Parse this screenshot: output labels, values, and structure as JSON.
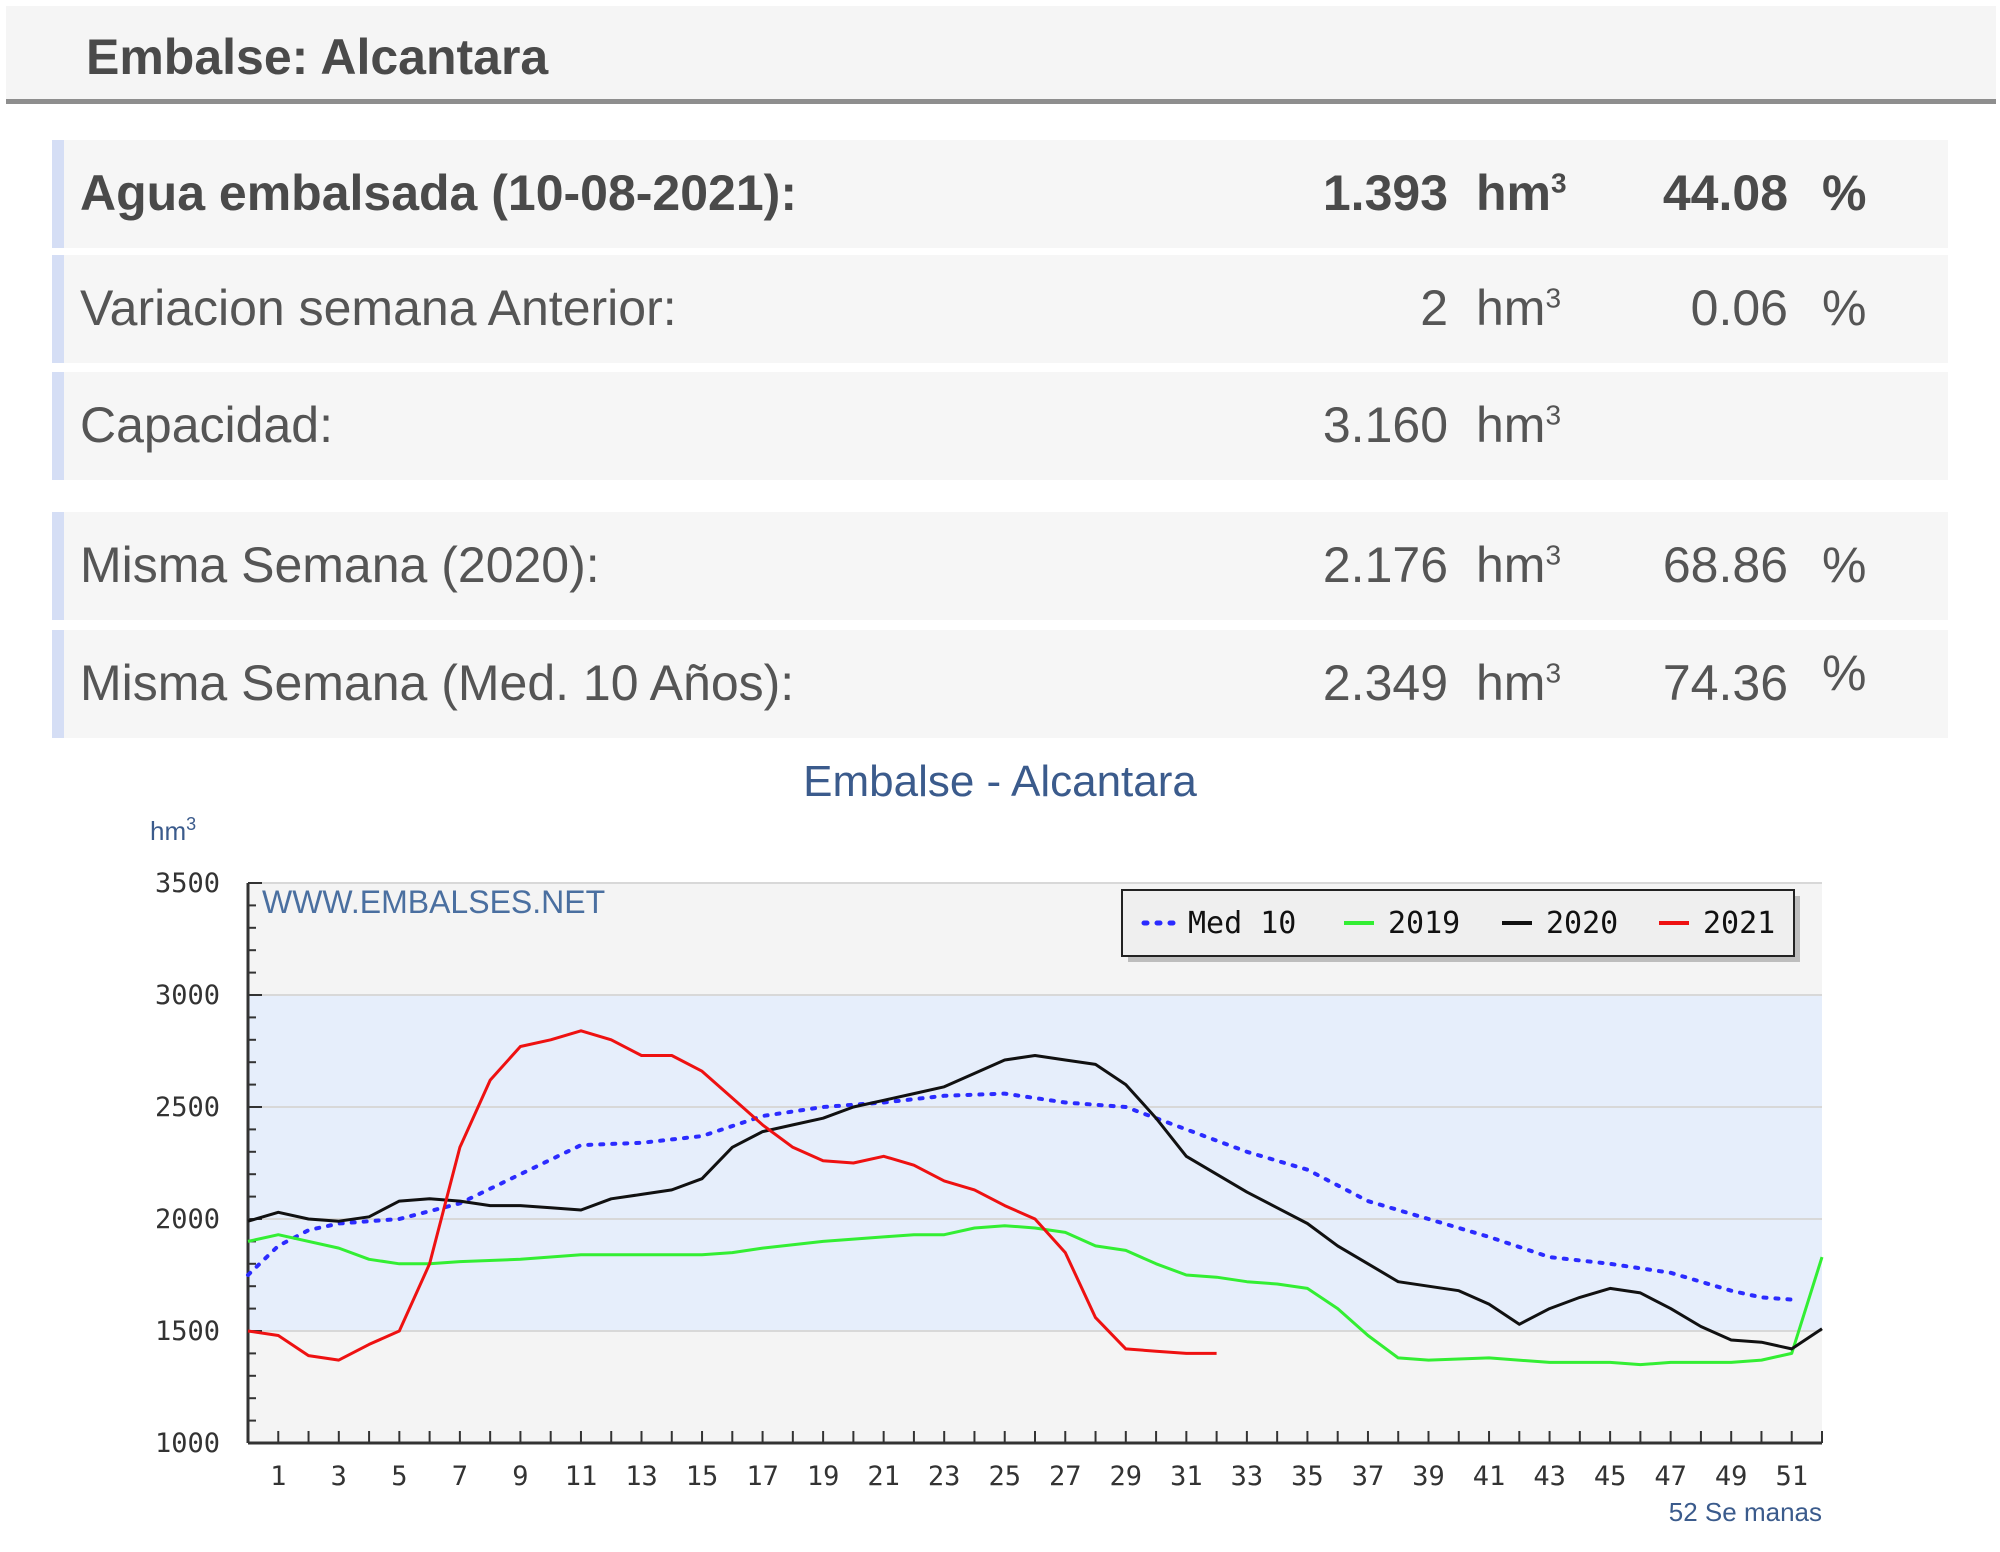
{
  "header": {
    "title": "Embalse: Alcantara"
  },
  "rows": [
    {
      "label": "Agua embalsada (10-08-2021):",
      "value": "1.393",
      "unit": "hm",
      "unit_sup": "3",
      "pct": "44.08",
      "pct_sign": "%"
    },
    {
      "label": "Variacion semana Anterior:",
      "value": "2",
      "unit": "hm",
      "unit_sup": "3",
      "pct": "0.06",
      "pct_sign": "%"
    },
    {
      "label": "Capacidad:",
      "value": "3.160",
      "unit": "hm",
      "unit_sup": "3",
      "pct": "",
      "pct_sign": ""
    },
    {
      "label": "Misma Semana (2020):",
      "value": "2.176",
      "unit": "hm",
      "unit_sup": "3",
      "pct": "68.86",
      "pct_sign": "%"
    },
    {
      "label": "Misma Semana (Med. 10 Años):",
      "value": "2.349",
      "unit": "hm",
      "unit_sup": "3",
      "pct": "74.36",
      "pct_sign": "%"
    }
  ],
  "chart_data": {
    "type": "line",
    "title": "Embalse - Alcantara",
    "ylabel": "hm",
    "ylabel_sup": "3",
    "xlabel": "52 Se manas",
    "watermark": "WWW.EMBALSES.NET",
    "ylim": [
      1000,
      3500
    ],
    "xlim": [
      0,
      52
    ],
    "yticks": [
      1000,
      1500,
      2000,
      2500,
      3000,
      3500
    ],
    "xticks": [
      1,
      3,
      5,
      7,
      9,
      11,
      13,
      15,
      17,
      19,
      21,
      23,
      25,
      27,
      29,
      31,
      33,
      35,
      37,
      39,
      41,
      43,
      45,
      47,
      49,
      51
    ],
    "band": [
      1500,
      3000
    ],
    "legend_position": "top-right",
    "colors": {
      "Med 10": "#2b2bff",
      "2019": "#33ee33",
      "2020": "#111111",
      "2021": "#ee1111",
      "band": "#e6eefb"
    },
    "series": [
      {
        "name": "Med 10",
        "style": "dotted",
        "x": [
          0,
          1,
          2,
          3,
          5,
          7,
          9,
          11,
          13,
          15,
          17,
          19,
          21,
          23,
          25,
          27,
          29,
          31,
          33,
          35,
          37,
          39,
          41,
          43,
          45,
          47,
          49,
          50,
          51
        ],
        "y": [
          1750,
          1880,
          1950,
          1980,
          2000,
          2070,
          2200,
          2330,
          2340,
          2370,
          2460,
          2500,
          2520,
          2550,
          2560,
          2520,
          2500,
          2400,
          2300,
          2220,
          2080,
          2000,
          1920,
          1830,
          1800,
          1760,
          1680,
          1650,
          1640
        ]
      },
      {
        "name": "2019",
        "style": "solid",
        "x": [
          0,
          1,
          3,
          4,
          5,
          6,
          7,
          9,
          11,
          13,
          15,
          16,
          17,
          19,
          21,
          22,
          23,
          24,
          25,
          26,
          27,
          28,
          29,
          30,
          31,
          32,
          33,
          34,
          35,
          36,
          37,
          38,
          39,
          41,
          43,
          45,
          46,
          47,
          49,
          50,
          51,
          52
        ],
        "y": [
          1900,
          1930,
          1870,
          1820,
          1800,
          1800,
          1810,
          1820,
          1840,
          1840,
          1840,
          1850,
          1870,
          1900,
          1920,
          1930,
          1930,
          1960,
          1970,
          1960,
          1940,
          1880,
          1860,
          1800,
          1750,
          1740,
          1720,
          1710,
          1690,
          1600,
          1480,
          1380,
          1370,
          1380,
          1360,
          1360,
          1350,
          1360,
          1360,
          1370,
          1400,
          1830
        ]
      },
      {
        "name": "2020",
        "style": "solid",
        "x": [
          0,
          1,
          2,
          3,
          4,
          5,
          6,
          7,
          8,
          9,
          10,
          11,
          12,
          13,
          14,
          15,
          16,
          17,
          18,
          19,
          20,
          21,
          22,
          23,
          24,
          25,
          26,
          27,
          28,
          29,
          30,
          31,
          32,
          33,
          34,
          35,
          36,
          37,
          38,
          39,
          40,
          41,
          42,
          43,
          44,
          45,
          46,
          47,
          48,
          49,
          50,
          51,
          52
        ],
        "y": [
          1990,
          2030,
          2000,
          1990,
          2010,
          2080,
          2090,
          2080,
          2060,
          2060,
          2050,
          2040,
          2090,
          2110,
          2130,
          2180,
          2320,
          2390,
          2420,
          2450,
          2500,
          2530,
          2560,
          2590,
          2650,
          2710,
          2730,
          2710,
          2690,
          2600,
          2450,
          2280,
          2200,
          2120,
          2050,
          1980,
          1880,
          1800,
          1720,
          1700,
          1680,
          1620,
          1530,
          1600,
          1650,
          1690,
          1670,
          1600,
          1520,
          1460,
          1450,
          1420,
          1510
        ]
      },
      {
        "name": "2021",
        "style": "solid",
        "x": [
          0,
          1,
          2,
          3,
          4,
          5,
          6,
          7,
          8,
          9,
          10,
          11,
          12,
          13,
          14,
          15,
          16,
          17,
          18,
          19,
          20,
          21,
          22,
          23,
          24,
          25,
          26,
          27,
          28,
          29,
          30,
          31,
          32
        ],
        "y": [
          1500,
          1480,
          1390,
          1370,
          1440,
          1500,
          1800,
          2320,
          2620,
          2770,
          2800,
          2840,
          2800,
          2730,
          2730,
          2660,
          2540,
          2420,
          2320,
          2260,
          2250,
          2280,
          2240,
          2170,
          2130,
          2060,
          2000,
          1850,
          1560,
          1420,
          1410,
          1400,
          1400
        ]
      }
    ]
  }
}
